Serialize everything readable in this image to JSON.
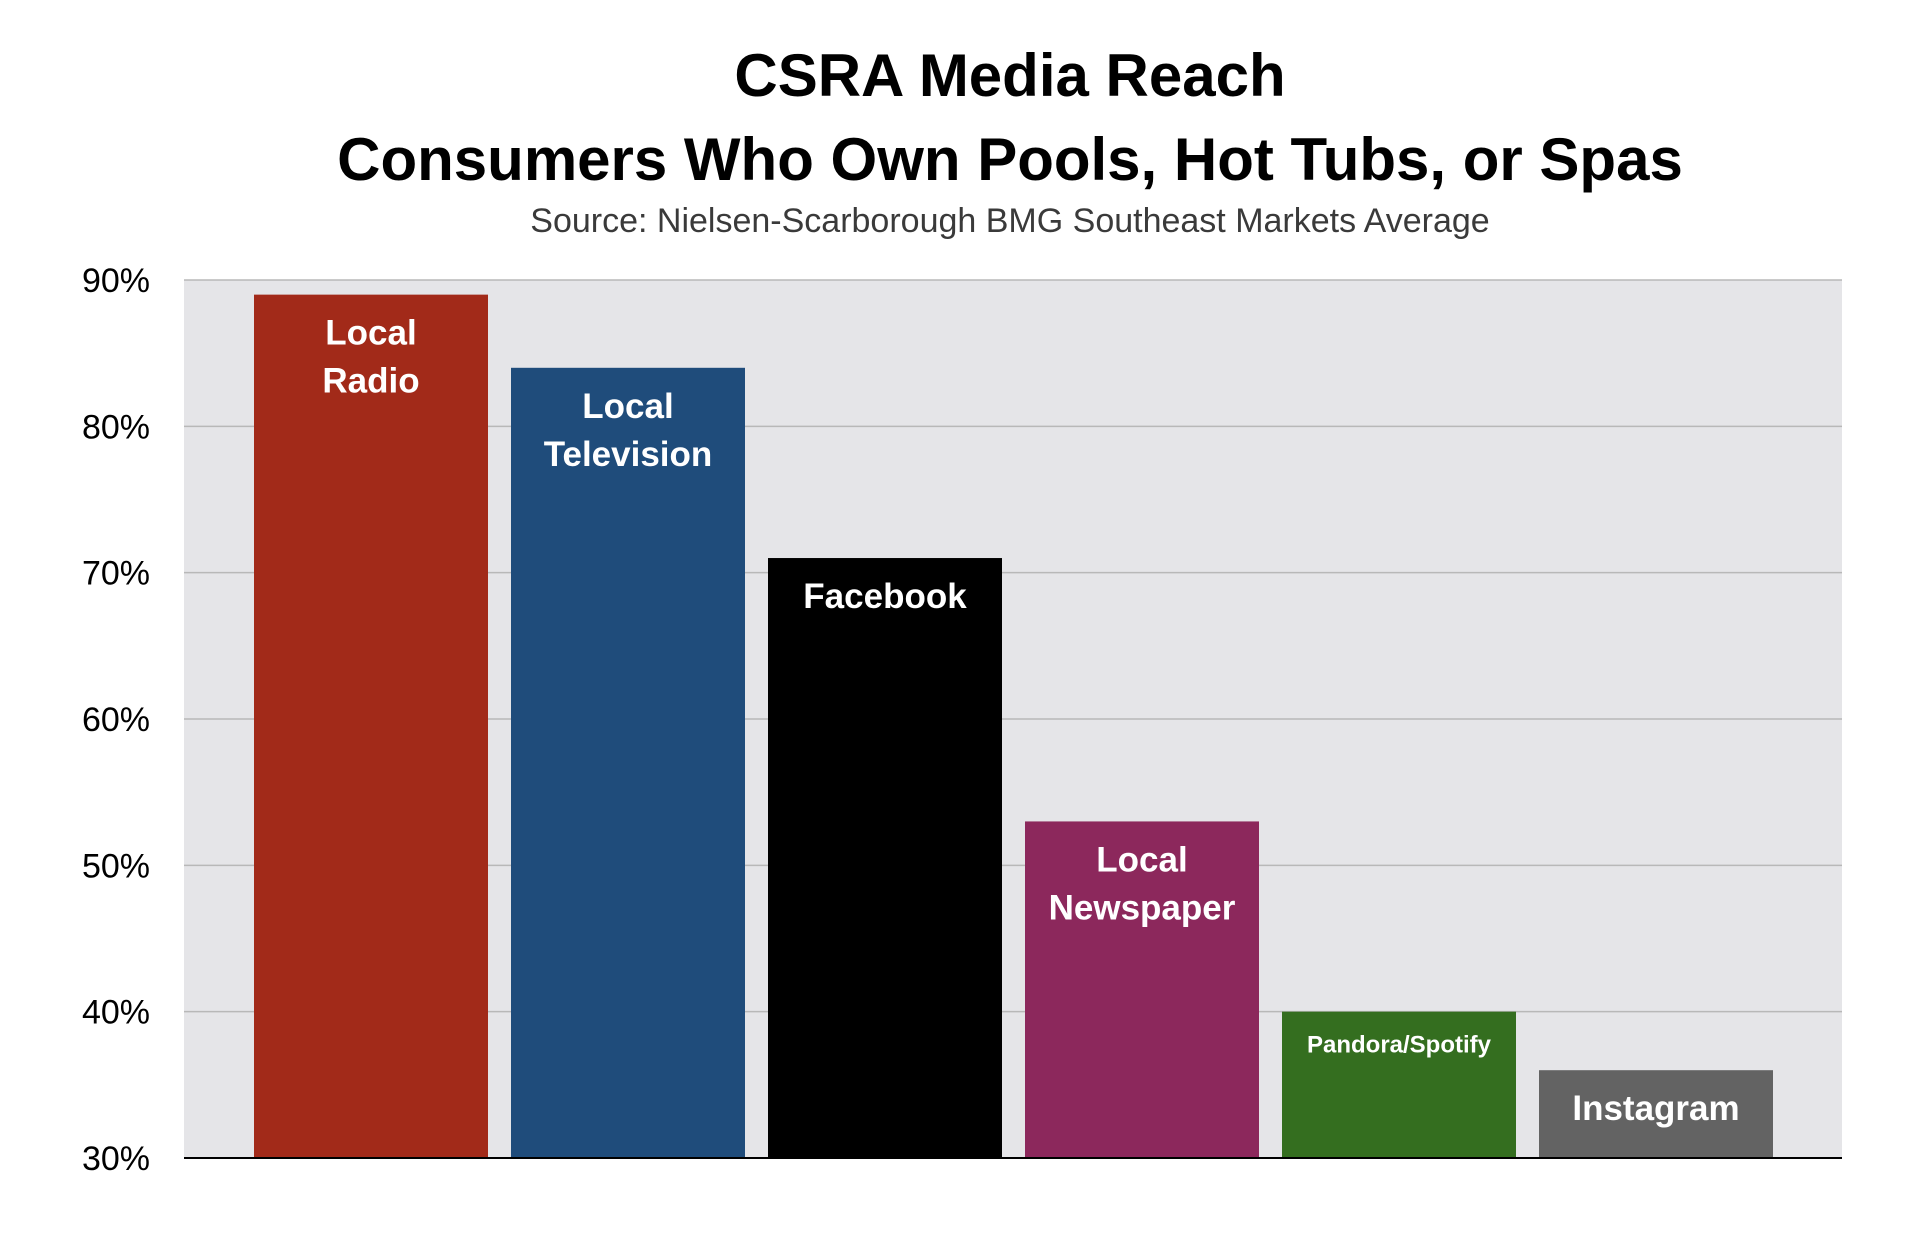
{
  "chart_data": {
    "type": "bar",
    "title": "CSRA Media Reach",
    "subtitle": "Consumers Who Own Pools, Hot Tubs, or Spas",
    "source": "Source: Nielsen-Scarborough BMG Southeast Markets Average",
    "xlabel": "",
    "ylabel": "",
    "ylim": [
      30,
      90
    ],
    "yticks": [
      90,
      80,
      70,
      60,
      50,
      40,
      30
    ],
    "ytick_labels": [
      "90%",
      "80%",
      "70%",
      "60%",
      "50%",
      "40%",
      "30%"
    ],
    "grid": true,
    "plot_background": "#e5e5e8",
    "gridline_color": "#b8b8b8",
    "bars": [
      {
        "category": "Local Radio",
        "label_lines": [
          "Local",
          "Radio"
        ],
        "value": 89,
        "color": "#a22a19"
      },
      {
        "category": "Local Television",
        "label_lines": [
          "Local",
          "Television"
        ],
        "value": 84,
        "color": "#1f4c7b"
      },
      {
        "category": "Facebook",
        "label_lines": [
          "Facebook"
        ],
        "value": 71,
        "color": "#000000"
      },
      {
        "category": "Local Newspaper",
        "label_lines": [
          "Local",
          "Newspaper"
        ],
        "value": 53,
        "color": "#8c285c"
      },
      {
        "category": "Pandora/Spotify",
        "label_lines": [
          "Pandora/Spotify"
        ],
        "value": 40,
        "color": "#346e1f",
        "small_label": true
      },
      {
        "category": "Instagram",
        "label_lines": [
          "Instagram"
        ],
        "value": 36,
        "color": "#636363"
      }
    ]
  }
}
